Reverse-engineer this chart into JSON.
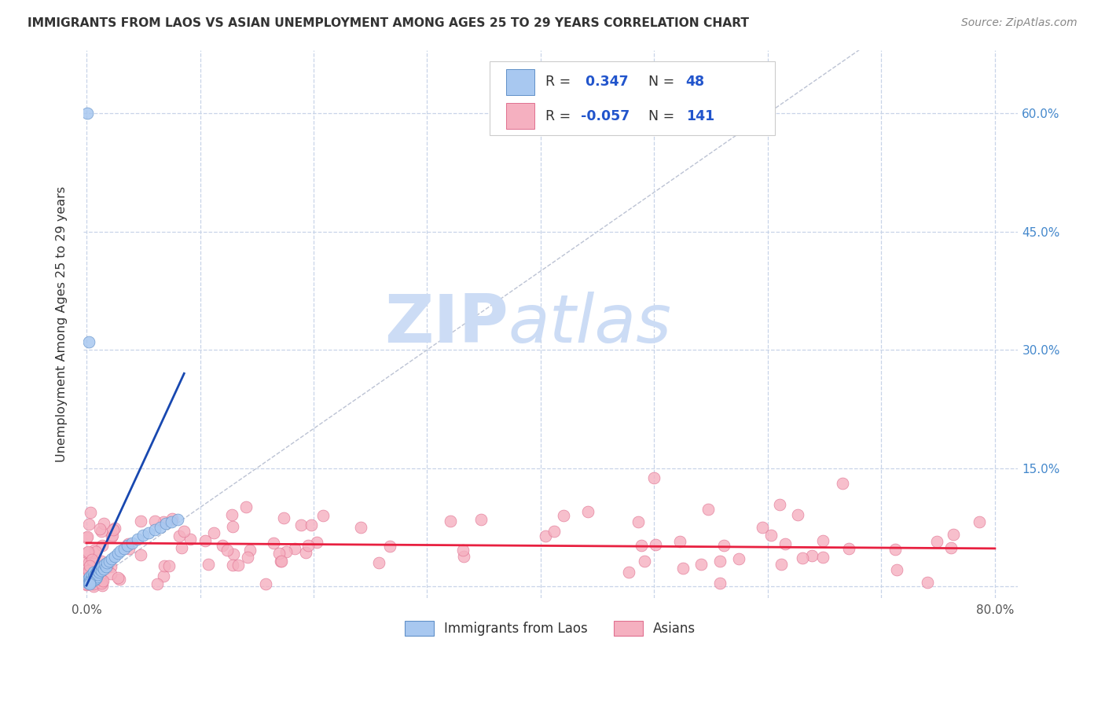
{
  "title": "IMMIGRANTS FROM LAOS VS ASIAN UNEMPLOYMENT AMONG AGES 25 TO 29 YEARS CORRELATION CHART",
  "source": "Source: ZipAtlas.com",
  "ylabel": "Unemployment Among Ages 25 to 29 years",
  "xlim": [
    -0.003,
    0.82
  ],
  "ylim": [
    -0.015,
    0.68
  ],
  "R_blue": 0.347,
  "N_blue": 48,
  "R_pink": -0.057,
  "N_pink": 141,
  "blue_fill": "#a8c8f0",
  "blue_edge": "#6090c8",
  "pink_fill": "#f5b0c0",
  "pink_edge": "#e07090",
  "trend_blue": "#1848b0",
  "trend_pink": "#e82040",
  "diagonal_color": "#b0b8cc",
  "grid_color": "#c8d4e8",
  "watermark_zip_color": "#ccdcf5",
  "watermark_atlas_color": "#ccdcf5",
  "bg_color": "#ffffff",
  "text_dark": "#333333",
  "text_blue": "#2255cc",
  "text_gray": "#888888",
  "legend_text_color": "#2255cc"
}
